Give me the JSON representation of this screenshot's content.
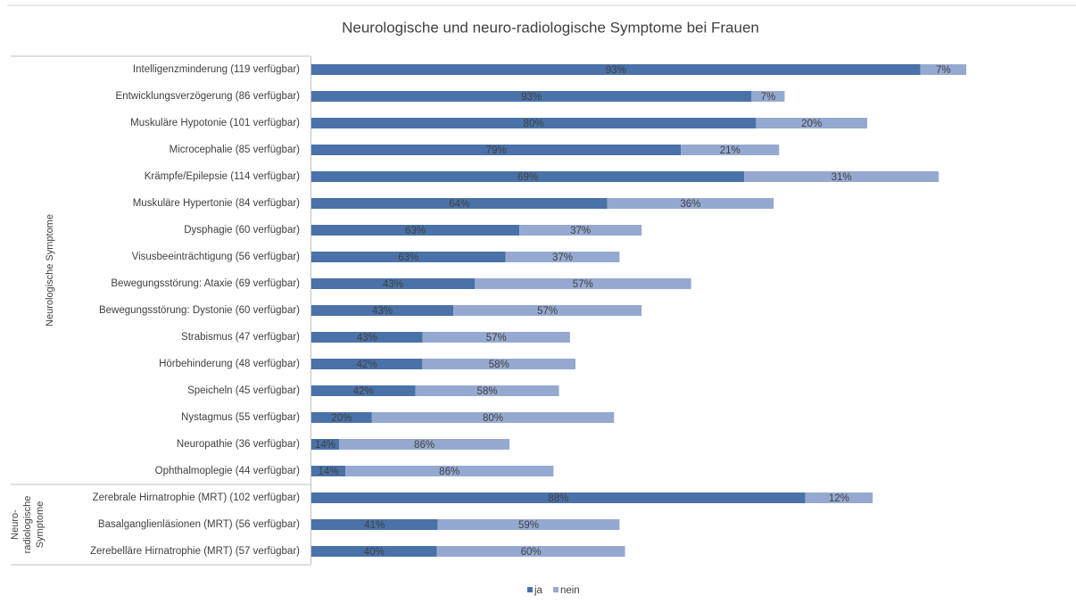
{
  "chart_data": {
    "type": "stacked-barh",
    "title": "Neurologische und neuro-radiologische Symptome bei Frauen",
    "groups": [
      {
        "name": "Neurologische Symptome",
        "categories": [
          "Intelligenzminderung (119 verfügbar)",
          "Entwicklungsverzögerung (86 verfügbar)",
          "Muskuläre Hypotonie (101 verfügbar)",
          "Microcephalie (85 verfügbar)",
          "Krämpfe/Epilepsie (114 verfügbar)",
          "Muskuläre Hypertonie (84 verfügbar)",
          "Dysphagie (60 verfügbar)",
          "Visusbeeinträchtigung (56 verfügbar)",
          "Bewegungsstörung: Ataxie (69 verfügbar)",
          "Bewegungsstörung: Dystonie (60 verfügbar)",
          "Strabismus (47 verfügbar)",
          "Hörbehinderung (48 verfügbar)",
          "Speicheln (45 verfügbar)",
          "Nystagmus (55 verfügbar)",
          "Neuropathie (36 verfügbar)",
          "Ophthalmoplegie (44 verfügbar)"
        ]
      },
      {
        "name": "Neuro-radiologische Symptome",
        "categories": [
          "Zerebrale Hirnatrophie (MRT) (102 verfügbar)",
          "Basalganglienläsionen (MRT) (56 verfügbar)",
          "Zerebelläre Hirnatrophie (MRT) (57 verfügbar)"
        ]
      }
    ],
    "series": [
      {
        "name": "ja",
        "color": "#4a72a8",
        "values": [
          93,
          93,
          80,
          79,
          69,
          64,
          63,
          63,
          43,
          43,
          43,
          42,
          42,
          20,
          14,
          14,
          88,
          41,
          40
        ],
        "value_labels": [
          "93%",
          "93%",
          "80%",
          "79%",
          "69%",
          "64%",
          "63%",
          "63%",
          "43%",
          "43%",
          "43%",
          "42%",
          "42%",
          "20%",
          "14%",
          "14%",
          "88%",
          "41%",
          "40%"
        ]
      },
      {
        "name": "nein",
        "color": "#95a9d0",
        "values": [
          7,
          7,
          20,
          21,
          31,
          36,
          37,
          37,
          57,
          57,
          57,
          58,
          58,
          80,
          86,
          86,
          12,
          59,
          60
        ],
        "value_labels": [
          "7%",
          "7%",
          "20%",
          "21%",
          "31%",
          "36%",
          "37%",
          "37%",
          "57%",
          "57%",
          "57%",
          "58%",
          "58%",
          "80%",
          "86%",
          "86%",
          "12%",
          "59%",
          "60%"
        ]
      }
    ],
    "legend": "bottom"
  }
}
